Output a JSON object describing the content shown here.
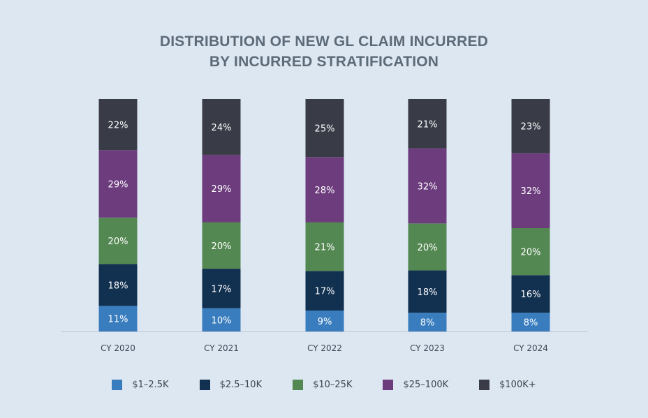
{
  "chart_data": {
    "type": "bar",
    "stacked": true,
    "title": "DISTRIBUTION OF NEW GL CLAIM INCURRED",
    "subtitle": "BY INCURRED STRATIFICATION",
    "categories": [
      "CY 2020",
      "CY 2021",
      "CY 2022",
      "CY 2023",
      "CY 2024"
    ],
    "series": [
      {
        "name": "$1–2.5K",
        "color": "#3a7dbe",
        "values": [
          11,
          10,
          9,
          8,
          8
        ],
        "labels": [
          "11%",
          "10%",
          "9%",
          "8%",
          "8%"
        ]
      },
      {
        "name": "$2.5–10K",
        "color": "#12304f",
        "values": [
          18,
          17,
          17,
          18,
          16
        ],
        "labels": [
          "18%",
          "17%",
          "17%",
          "18%",
          "16%"
        ]
      },
      {
        "name": "$10–25K",
        "color": "#548852",
        "values": [
          20,
          20,
          21,
          20,
          20
        ],
        "labels": [
          "20%",
          "20%",
          "21%",
          "20%",
          "20%"
        ]
      },
      {
        "name": "$25–100K",
        "color": "#6c3c7d",
        "values": [
          29,
          29,
          28,
          32,
          32
        ],
        "labels": [
          "29%",
          "29%",
          "28%",
          "32%",
          "32%"
        ]
      },
      {
        "name": "$100K+",
        "color": "#393c47",
        "values": [
          22,
          24,
          25,
          21,
          23
        ],
        "labels": [
          "22%",
          "24%",
          "25%",
          "21%",
          "23%"
        ]
      }
    ],
    "ylim": [
      0,
      100
    ],
    "grid": false,
    "legend": "bottom"
  }
}
